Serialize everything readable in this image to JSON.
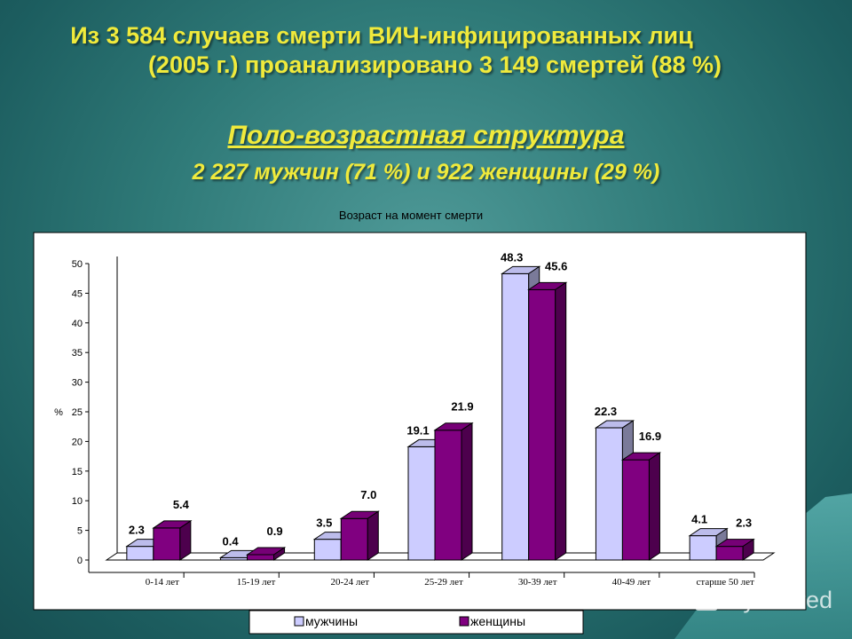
{
  "slide": {
    "title_line1": "Из 3 584 случаев смерти ВИЧ-инфицированных лиц",
    "title_line2": "(2005 г.)  проанализировано 3 149 смертей (88 %)",
    "subtitle": "Поло-возрастная структура",
    "summary": "2 227 мужчин (71 %) и 922 женщины (29 %)"
  },
  "watermark": {
    "text": "MyShared",
    "icon": "presentation-board-icon"
  },
  "chart_data": {
    "type": "bar",
    "title": "Возраст на момент смерти",
    "ylabel": "%",
    "xlabel": "",
    "ylim": [
      0,
      50
    ],
    "yticks": [
      0,
      5,
      10,
      15,
      20,
      25,
      30,
      35,
      40,
      45,
      50
    ],
    "categories": [
      "0-14 лет",
      "15-19 лет",
      "20-24 лет",
      "25-29 лет",
      "30-39 лет",
      "40-49 лет",
      "старше 50 лет"
    ],
    "series": [
      {
        "name": "мужчины",
        "values": [
          2.3,
          0.4,
          3.5,
          19.1,
          48.3,
          22.3,
          4.1
        ],
        "labels": [
          "2.3",
          "0.4",
          "3.5",
          "19.1",
          "48.3",
          "22.3",
          "4.1"
        ],
        "color": "#ccccff"
      },
      {
        "name": "женщины",
        "values": [
          5.4,
          0.9,
          7.0,
          21.9,
          45.6,
          16.9,
          2.3
        ],
        "labels": [
          "5.4",
          "0.9",
          "7.0",
          "21.9",
          "45.6",
          "16.9",
          "2.3"
        ],
        "color": "#800080"
      }
    ],
    "grid": false,
    "legend_position": "bottom",
    "style": "3d-clustered-column"
  }
}
